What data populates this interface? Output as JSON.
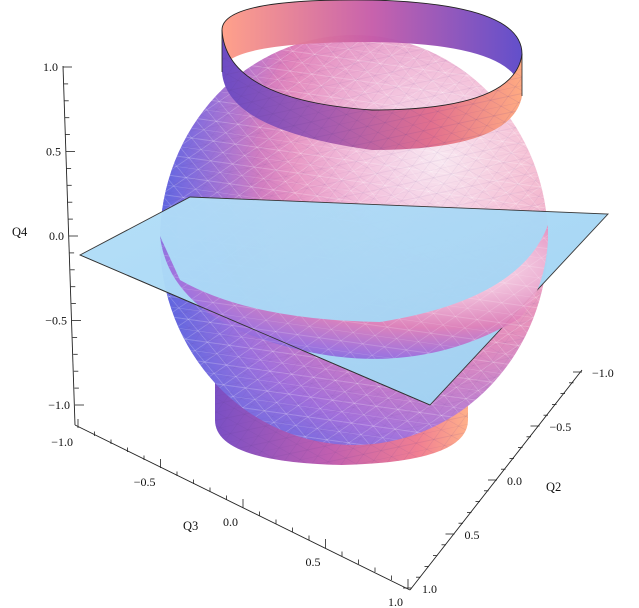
{
  "axes": {
    "q2": {
      "title": "Q2",
      "ticks": [
        "−1.0",
        "−0.5",
        "0.0",
        "0.5",
        "1.0"
      ]
    },
    "q3": {
      "title": "Q3",
      "ticks": [
        "−1.0",
        "−0.5",
        "0.0",
        "0.5",
        "1.0"
      ]
    },
    "q4": {
      "title": "Q4",
      "ticks": [
        "1.0",
        "0.5",
        "0.0",
        "−0.5",
        "−1.0"
      ]
    }
  },
  "surfaces": [
    {
      "kind": "sphere",
      "color": "#b98ae8"
    },
    {
      "kind": "cylinder-band-top",
      "color": "#e0709a"
    },
    {
      "kind": "cylinder-band-bottom",
      "color": "#a866c2"
    },
    {
      "kind": "plane",
      "color": "#a9d8f5"
    }
  ],
  "colors": {
    "sphere_light": "#fbe8f1",
    "sphere_blue": "#6a73e6",
    "sphere_magenta": "#e25aa6",
    "band_orange": "#ffad8a",
    "band_purple": "#7c4fc4",
    "plane": "#a9d8f5"
  }
}
